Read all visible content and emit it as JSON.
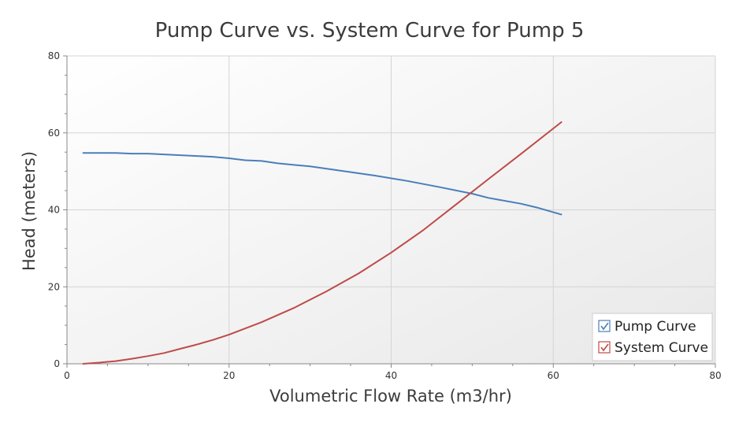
{
  "colors": {
    "pump": "#4a7ebb",
    "system": "#be4b48",
    "grid": "#d4d4d4",
    "plot_bg_top": "#ffffff",
    "plot_bg_bottom": "#e8e8e8"
  },
  "chart_data": {
    "type": "line",
    "title": "Pump Curve vs. System Curve for Pump 5",
    "xlabel": "Volumetric Flow Rate (m3/hr)",
    "ylabel": "Head (meters)",
    "xlim": [
      0,
      80
    ],
    "ylim": [
      0,
      80
    ],
    "xticks": [
      0,
      20,
      40,
      60,
      80
    ],
    "yticks": [
      0,
      20,
      40,
      60,
      80
    ],
    "grid": true,
    "legend_position": "bottom-right",
    "series": [
      {
        "name": "Pump Curve",
        "color_key": "pump",
        "legend_checked": true,
        "x": [
          2,
          6,
          8,
          10,
          14,
          18,
          20,
          22,
          24,
          26,
          30,
          34,
          38,
          42,
          46,
          50,
          52,
          56,
          58,
          61
        ],
        "y": [
          54.8,
          54.8,
          54.6,
          54.6,
          54.2,
          53.8,
          53.4,
          52.9,
          52.7,
          52.1,
          51.3,
          50.1,
          48.9,
          47.5,
          45.9,
          44.2,
          43.1,
          41.6,
          40.6,
          38.8
        ]
      },
      {
        "name": "System Curve",
        "color_key": "system",
        "legend_checked": true,
        "x": [
          2,
          4,
          6,
          8,
          10,
          12,
          14,
          16,
          18,
          20,
          24,
          28,
          32,
          36,
          40,
          44,
          48,
          52,
          56,
          61
        ],
        "y": [
          0,
          0.3,
          0.7,
          1.3,
          2.0,
          2.8,
          3.9,
          5.0,
          6.2,
          7.6,
          10.8,
          14.5,
          18.8,
          23.5,
          28.9,
          34.8,
          41.4,
          48.0,
          54.5,
          62.8
        ]
      }
    ]
  }
}
